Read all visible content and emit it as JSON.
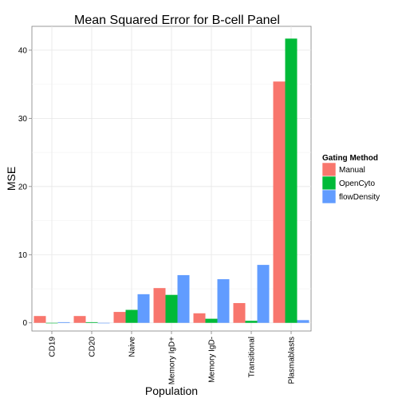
{
  "chart_data": {
    "type": "bar",
    "title": "Mean Squared Error for B-cell Panel",
    "xlabel": "Population",
    "ylabel": "MSE",
    "categories": [
      "CD19",
      "CD20",
      "Naive",
      "Memory IgD+",
      "Memory IgD-",
      "Transitional",
      "Plasmablasts"
    ],
    "series": [
      {
        "name": "Manual",
        "color": "#F8766D",
        "values": [
          1.0,
          1.0,
          1.6,
          5.1,
          1.4,
          2.9,
          35.4
        ]
      },
      {
        "name": "OpenCyto",
        "color": "#00BA38",
        "values": [
          0.0,
          0.1,
          1.9,
          4.1,
          0.6,
          0.3,
          41.7
        ]
      },
      {
        "name": "flowDensity",
        "color": "#619CFF",
        "values": [
          0.1,
          0.0,
          4.2,
          7.0,
          6.4,
          8.5,
          0.4
        ]
      }
    ],
    "yticks": [
      0,
      10,
      20,
      30,
      40
    ],
    "ylim": [
      -1.2,
      43.5
    ],
    "legend": {
      "title": "Gating Method",
      "position": "right"
    },
    "grid": true,
    "theme": "bw"
  }
}
